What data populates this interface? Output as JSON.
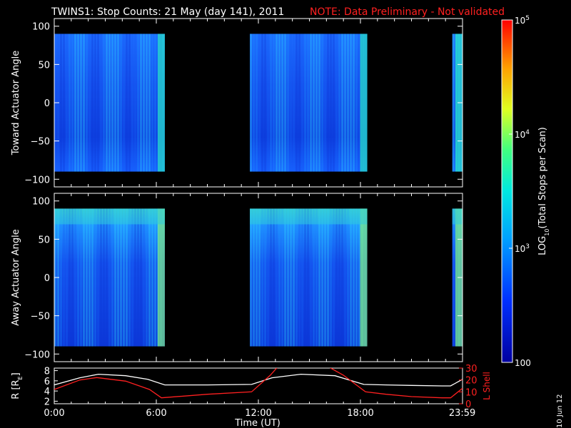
{
  "title": "TWINS1: Stop Counts: 21 May (day 141), 2011",
  "note": "NOTE: Data Preliminary - Not validated",
  "stamp": "10 Jun 12",
  "colors": {
    "background": "#000000",
    "note": "#ff2020",
    "r_line": "#ffffff",
    "lshell_line": "#ff2020"
  },
  "chart_data": [
    {
      "type": "heatmap",
      "ylabel": "Toward Actuator Angle",
      "ylim": [
        -110,
        110
      ],
      "yticks": [
        100,
        50,
        0,
        -50,
        -100
      ],
      "xlim": [
        0,
        24
      ],
      "data_y_range": [
        -90,
        90
      ],
      "data_intervals_hours": [
        [
          0,
          6.5
        ],
        [
          11.5,
          18.4
        ],
        [
          23.4,
          24
        ]
      ],
      "colormap": "rainbow",
      "color_range": [
        100,
        100000
      ],
      "color_scale": "log"
    },
    {
      "type": "heatmap",
      "ylabel": "Away Actuator Angle",
      "ylim": [
        -110,
        110
      ],
      "yticks": [
        100,
        50,
        0,
        -50,
        -100
      ],
      "xlim": [
        0,
        24
      ],
      "data_y_range": [
        -90,
        90
      ],
      "data_intervals_hours": [
        [
          0,
          6.5
        ],
        [
          11.5,
          18.4
        ],
        [
          23.4,
          24
        ]
      ],
      "colormap": "rainbow",
      "color_range": [
        100,
        100000
      ],
      "color_scale": "log"
    },
    {
      "type": "line",
      "xlabel": "Time (UT)",
      "xlim": [
        0,
        24
      ],
      "xticks": [
        0,
        6,
        12,
        18,
        23.983
      ],
      "xtick_labels": [
        "0:00",
        "6:00",
        "12:00",
        "18:00",
        "23:59"
      ],
      "ylabel_left": "R [R",
      "ylabel_left_sub": "E",
      "ylabel_left_close": "]",
      "ylim_left": [
        1.5,
        8.5
      ],
      "yticks_left": [
        8,
        6,
        4,
        2
      ],
      "ylabel_right": "L Shell",
      "ylim_right": [
        0,
        30
      ],
      "yticks_right": [
        30,
        20,
        10,
        0
      ],
      "series": [
        {
          "axis": "left",
          "color": "#ffffff",
          "x": [
            0,
            1.5,
            2.6,
            4.2,
            5.5,
            6.5,
            9,
            11.6,
            12.8,
            14.5,
            16.5,
            18.2,
            19.5,
            21,
            22.8,
            23.3,
            24
          ],
          "y": [
            5.2,
            6.6,
            7.3,
            7.0,
            6.3,
            5.2,
            5.2,
            5.3,
            6.6,
            7.3,
            7.0,
            5.3,
            5.2,
            5.1,
            5.0,
            5.0,
            6.3
          ]
        },
        {
          "axis": "right",
          "color": "#ff2020",
          "x": [
            0,
            1.5,
            2.5,
            4.2,
            5.6,
            6.3,
            9,
            11.6,
            12.7,
            13.2,
            16,
            17,
            18.3,
            19.5,
            21,
            22.8,
            23.3,
            24
          ],
          "y": [
            12,
            20,
            22,
            19,
            12,
            5,
            8,
            10,
            24,
            32,
            32,
            24,
            10,
            8,
            6,
            5,
            5,
            13
          ]
        }
      ]
    }
  ],
  "colorbar": {
    "label_prefix": "LOG",
    "label_sub": "10",
    "label_suffix": "(Total Stops per Scan)",
    "ticks": [
      {
        "value": 100000,
        "base": "10",
        "exp": "5"
      },
      {
        "value": 10000,
        "base": "10",
        "exp": "4"
      },
      {
        "value": 1000,
        "base": "10",
        "exp": "3"
      },
      {
        "value": 100,
        "text": "100"
      }
    ]
  }
}
